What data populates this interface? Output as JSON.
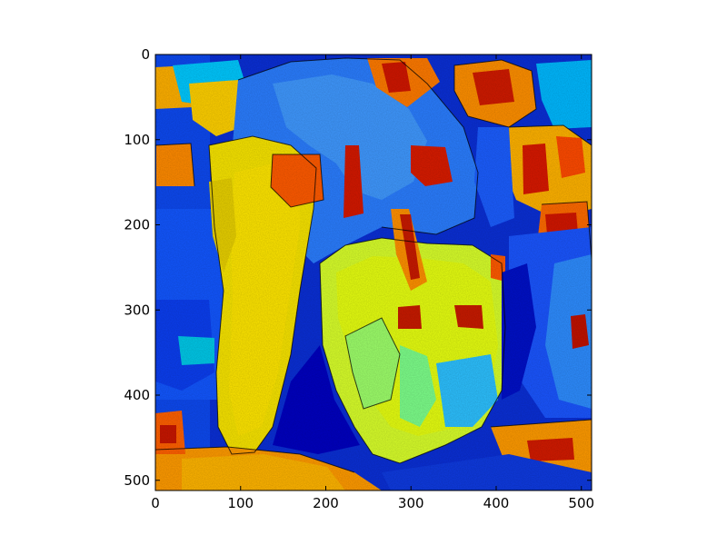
{
  "chart_data": {
    "type": "heatmap",
    "title": "",
    "xlabel": "",
    "ylabel": "",
    "colormap": "jet",
    "colormap_stops": [
      "#00007f",
      "#0000ff",
      "#007fff",
      "#00ffff",
      "#7fff7f",
      "#ffff00",
      "#ff7f00",
      "#ff0000",
      "#7f0000"
    ],
    "image_size": [
      512,
      512
    ],
    "xlim": [
      0,
      512
    ],
    "ylim": [
      512,
      0
    ],
    "y_inverted": true,
    "xticks": [
      0,
      100,
      200,
      300,
      400,
      500
    ],
    "yticks": [
      0,
      100,
      200,
      300,
      400,
      500
    ],
    "xtick_labels": [
      "0",
      "100",
      "200",
      "300",
      "400",
      "500"
    ],
    "ytick_labels": [
      "0",
      "100",
      "200",
      "300",
      "400",
      "500"
    ],
    "grid": false,
    "legend": "none"
  }
}
